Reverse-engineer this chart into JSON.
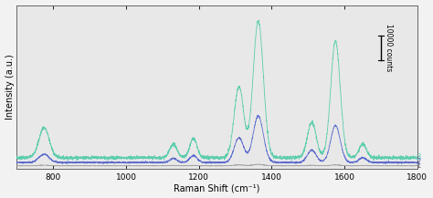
{
  "xlabel": "Raman Shift (cm⁻¹)",
  "ylabel": "Intensity (a.u.)",
  "xlim": [
    700,
    1800
  ],
  "background_color": "#f2f2f2",
  "plot_bg_color": "#e8e8e8",
  "line_colors": {
    "1": "#a0a0a0",
    "2": "#5566cc",
    "3": "#55ccaa"
  },
  "scale_bar_text": "10000 counts",
  "raman_peaks": [
    775,
    1130,
    1185,
    1310,
    1363,
    1510,
    1575,
    1650
  ],
  "peak_widths": [
    14,
    10,
    10,
    13,
    14,
    12,
    13,
    10
  ],
  "peak_heights_3": [
    0.22,
    0.1,
    0.14,
    0.52,
    1.0,
    0.26,
    0.85,
    0.1
  ],
  "peak_heights_2": [
    0.06,
    0.03,
    0.05,
    0.18,
    0.34,
    0.09,
    0.27,
    0.035
  ],
  "peak_heights_1": [
    0.004,
    0.002,
    0.002,
    0.006,
    0.01,
    0.003,
    0.006,
    0.002
  ],
  "base_levels": [
    0.065,
    0.03,
    0.006
  ],
  "noise_levels": [
    0.006,
    0.003,
    0.0008
  ]
}
